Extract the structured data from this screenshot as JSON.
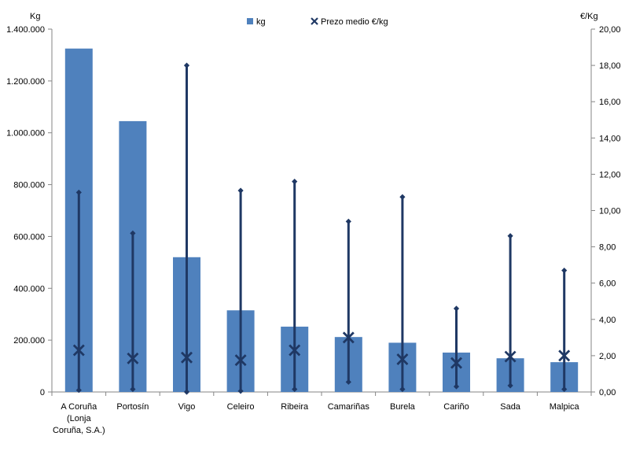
{
  "chart_data": {
    "type": "bar",
    "categories": [
      [
        "A Coruña",
        "(Lonja",
        "Coruña, S.A.)"
      ],
      [
        "Portosín"
      ],
      [
        "Vigo"
      ],
      [
        "Celeiro"
      ],
      [
        "Ribeira"
      ],
      [
        "Camariñas"
      ],
      [
        "Burela"
      ],
      [
        "Cariño"
      ],
      [
        "Sada"
      ],
      [
        "Malpica"
      ]
    ],
    "ylabel_left": "Kg",
    "ylabel_right": "€/Kg",
    "ylim_left": [
      0,
      1400000
    ],
    "ylim_right": [
      0,
      20
    ],
    "left_ticks": [
      "0",
      "200.000",
      "400.000",
      "600.000",
      "800.000",
      "1.000.000",
      "1.200.000",
      "1.400.000"
    ],
    "right_ticks": [
      "0,00",
      "2,00",
      "4,00",
      "6,00",
      "8,00",
      "10,00",
      "12,00",
      "14,00",
      "16,00",
      "18,00",
      "20,00"
    ],
    "legend": {
      "position": "top",
      "bar_label": "kg",
      "marker_label": "Prezo medio €/kg"
    },
    "series": [
      {
        "name": "kg",
        "kind": "bar",
        "axis": "left",
        "color": "#4f81bd",
        "values": [
          1325000,
          1045000,
          520000,
          315000,
          252000,
          212000,
          190000,
          152000,
          130000,
          115000
        ]
      },
      {
        "name": "Prezo medio €/kg",
        "kind": "x-marker",
        "axis": "right",
        "color": "#1f3864",
        "values": [
          2.3,
          1.85,
          1.9,
          1.75,
          2.3,
          3.0,
          1.8,
          1.6,
          1.95,
          2.0
        ]
      }
    ],
    "price_range": {
      "axis": "right",
      "color": "#1f3864",
      "min": [
        0.1,
        0.15,
        0.0,
        0.05,
        0.15,
        0.55,
        0.15,
        0.3,
        0.35,
        0.15
      ],
      "max": [
        11.0,
        8.75,
        18.0,
        11.1,
        11.6,
        9.4,
        10.75,
        4.6,
        8.6,
        6.7
      ]
    }
  }
}
